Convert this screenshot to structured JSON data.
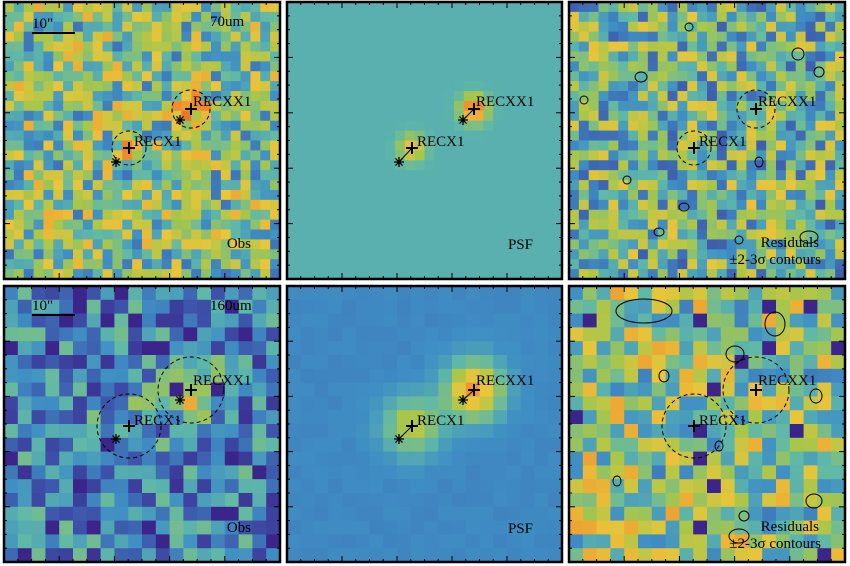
{
  "figure": {
    "rows": [
      {
        "band": "70um",
        "scalebar_label": "10\"",
        "sources": [
          {
            "name": "RECX1",
            "dashed_circle": true
          },
          {
            "name": "RECXX1",
            "dashed_circle": true
          }
        ],
        "panels": [
          {
            "role": "obs",
            "label": "Obs",
            "palette": "observed"
          },
          {
            "role": "psf",
            "label": "PSF",
            "palette": "psf_flat"
          },
          {
            "role": "residual",
            "label_line1": "Residuals",
            "label_line2": "±2-3σ contours",
            "palette": "residual"
          }
        ]
      },
      {
        "band": "160um",
        "scalebar_label": "10\"",
        "sources": [
          {
            "name": "RECX1",
            "dashed_circle": true
          },
          {
            "name": "RECXX1",
            "dashed_circle": true
          }
        ],
        "panels": [
          {
            "role": "obs",
            "label": "Obs",
            "palette": "observed"
          },
          {
            "role": "psf",
            "label": "PSF",
            "palette": "psf_flat"
          },
          {
            "role": "residual",
            "label_line1": "Residuals",
            "label_line2": "±2-3σ contours",
            "palette": "residual"
          }
        ]
      }
    ],
    "colormap": [
      "#3a0f7a",
      "#3d4fa8",
      "#3f8fc4",
      "#5fb8a8",
      "#a8c64a",
      "#e9c53a",
      "#f08a2c",
      "#e0302a"
    ],
    "marker_color": "#000000"
  }
}
